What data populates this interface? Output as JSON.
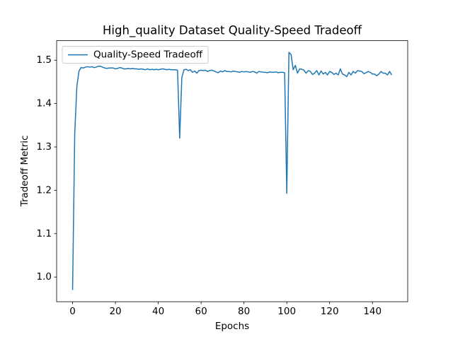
{
  "chart_data": {
    "type": "line",
    "title": "High_quality Dataset Quality-Speed Tradeoff",
    "x_label": "Epochs",
    "y_label": "Tradeoff Metric",
    "x": [
      0,
      1,
      2,
      3,
      4,
      5,
      6,
      7,
      8,
      9,
      10,
      11,
      12,
      13,
      14,
      15,
      16,
      17,
      18,
      19,
      20,
      21,
      22,
      23,
      24,
      25,
      26,
      27,
      28,
      29,
      30,
      31,
      32,
      33,
      34,
      35,
      36,
      37,
      38,
      39,
      40,
      41,
      42,
      43,
      44,
      45,
      46,
      47,
      48,
      49,
      50,
      51,
      52,
      53,
      54,
      55,
      56,
      57,
      58,
      59,
      60,
      61,
      62,
      63,
      64,
      65,
      66,
      67,
      68,
      69,
      70,
      71,
      72,
      73,
      74,
      75,
      76,
      77,
      78,
      79,
      80,
      81,
      82,
      83,
      84,
      85,
      86,
      87,
      88,
      89,
      90,
      91,
      92,
      93,
      94,
      95,
      96,
      97,
      98,
      99,
      100,
      101,
      102,
      103,
      104,
      105,
      106,
      107,
      108,
      109,
      110,
      111,
      112,
      113,
      114,
      115,
      116,
      117,
      118,
      119,
      120,
      121,
      122,
      123,
      124,
      125,
      126,
      127,
      128,
      129,
      130,
      131,
      132,
      133,
      134,
      135,
      136,
      137,
      138,
      139,
      140,
      141,
      142,
      143,
      144,
      145,
      146,
      147,
      148,
      149
    ],
    "series": [
      {
        "name": "Quality-Speed Tradeoff",
        "color": "#1f77b4",
        "values": [
          0.97,
          1.33,
          1.44,
          1.475,
          1.483,
          1.482,
          1.484,
          1.485,
          1.484,
          1.485,
          1.483,
          1.484,
          1.486,
          1.486,
          1.484,
          1.482,
          1.481,
          1.482,
          1.482,
          1.482,
          1.48,
          1.481,
          1.483,
          1.482,
          1.48,
          1.48,
          1.481,
          1.48,
          1.481,
          1.48,
          1.48,
          1.479,
          1.48,
          1.479,
          1.478,
          1.48,
          1.478,
          1.479,
          1.478,
          1.479,
          1.478,
          1.479,
          1.48,
          1.479,
          1.478,
          1.479,
          1.478,
          1.478,
          1.478,
          1.477,
          1.32,
          1.46,
          1.478,
          1.479,
          1.476,
          1.478,
          1.472,
          1.475,
          1.47,
          1.476,
          1.477,
          1.476,
          1.477,
          1.474,
          1.476,
          1.477,
          1.475,
          1.473,
          1.471,
          1.475,
          1.473,
          1.476,
          1.474,
          1.474,
          1.473,
          1.475,
          1.474,
          1.473,
          1.472,
          1.474,
          1.473,
          1.474,
          1.473,
          1.472,
          1.474,
          1.473,
          1.47,
          1.474,
          1.473,
          1.472,
          1.472,
          1.471,
          1.473,
          1.472,
          1.472,
          1.473,
          1.471,
          1.472,
          1.472,
          1.471,
          1.193,
          1.518,
          1.513,
          1.478,
          1.488,
          1.47,
          1.48,
          1.479,
          1.477,
          1.47,
          1.476,
          1.474,
          1.467,
          1.47,
          1.476,
          1.466,
          1.475,
          1.468,
          1.472,
          1.466,
          1.474,
          1.472,
          1.467,
          1.47,
          1.466,
          1.48,
          1.468,
          1.466,
          1.462,
          1.472,
          1.466,
          1.474,
          1.47,
          1.476,
          1.475,
          1.474,
          1.469,
          1.471,
          1.474,
          1.472,
          1.468,
          1.468,
          1.464,
          1.468,
          1.474,
          1.47,
          1.47,
          1.466,
          1.474,
          1.466
        ]
      }
    ],
    "xlim": [
      -7.45,
      156.45
    ],
    "ylim": [
      0.943,
      1.545
    ],
    "xticks": [
      0,
      20,
      40,
      60,
      80,
      100,
      120,
      140
    ],
    "yticks": [
      {
        "value": 1,
        "label": "1.0"
      },
      1.1,
      1.2,
      1.3,
      1.4,
      1.5
    ],
    "legend": "upper left",
    "grid": false
  }
}
